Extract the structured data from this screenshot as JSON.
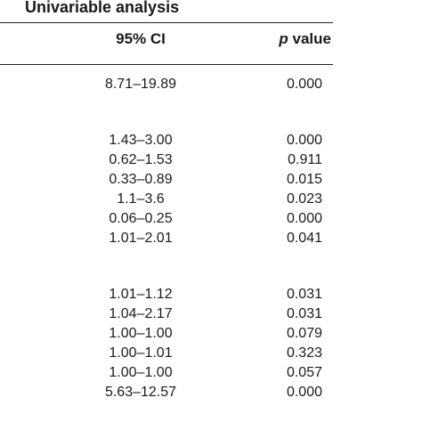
{
  "table": {
    "group_header": "Univariable analysis",
    "columns": {
      "ci": "95% CI",
      "p_italic": "p",
      "p_rest": " value"
    },
    "rows": [
      {
        "ci": "8.71–19.89",
        "p": "0.000"
      },
      {
        "ci": "1.43–3.00",
        "p": "0.000"
      },
      {
        "ci": "0.62–1.53",
        "p": "0.911"
      },
      {
        "ci": "0.33–0.89",
        "p": "0.015"
      },
      {
        "ci": "1.1–3.6",
        "p": "0.023"
      },
      {
        "ci": "0.06–0.25",
        "p": "0.000"
      },
      {
        "ci": "1.01–2.01",
        "p": "0.041"
      },
      {
        "ci": "1.01–1.12",
        "p": "0.031"
      },
      {
        "ci": "1.04–2.17",
        "p": "0.031"
      },
      {
        "ci": "1.00–1.00",
        "p": "0.079"
      },
      {
        "ci": "1.00–1.01",
        "p": "0.323"
      },
      {
        "ci": "1.00–1.00",
        "p": "0.057"
      },
      {
        "ci": "5.63–12.57",
        "p": "0.000"
      }
    ]
  }
}
